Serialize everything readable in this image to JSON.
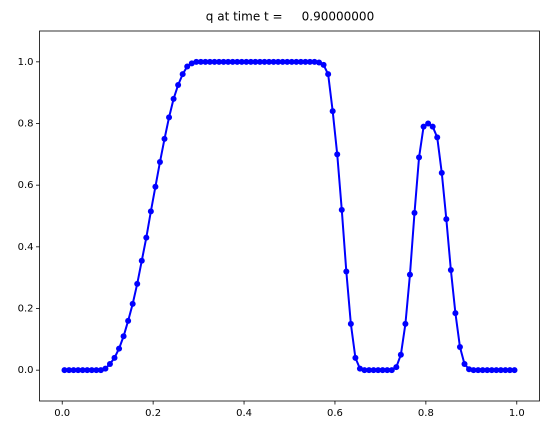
{
  "chart_data": {
    "type": "line",
    "title": "q at time t =     0.90000000",
    "x": [
      0.005,
      0.015,
      0.025,
      0.035,
      0.045,
      0.055,
      0.065,
      0.075,
      0.085,
      0.095,
      0.105,
      0.115,
      0.125,
      0.135,
      0.145,
      0.155,
      0.165,
      0.175,
      0.185,
      0.195,
      0.205,
      0.215,
      0.225,
      0.235,
      0.245,
      0.255,
      0.265,
      0.275,
      0.285,
      0.295,
      0.305,
      0.315,
      0.325,
      0.335,
      0.345,
      0.355,
      0.365,
      0.375,
      0.385,
      0.395,
      0.405,
      0.415,
      0.425,
      0.435,
      0.445,
      0.455,
      0.465,
      0.475,
      0.485,
      0.495,
      0.505,
      0.515,
      0.525,
      0.535,
      0.545,
      0.555,
      0.565,
      0.575,
      0.585,
      0.595,
      0.605,
      0.615,
      0.625,
      0.635,
      0.645,
      0.655,
      0.665,
      0.675,
      0.685,
      0.695,
      0.705,
      0.715,
      0.725,
      0.735,
      0.745,
      0.755,
      0.765,
      0.775,
      0.785,
      0.795,
      0.805,
      0.815,
      0.825,
      0.835,
      0.845,
      0.855,
      0.865,
      0.875,
      0.885,
      0.895,
      0.905,
      0.915,
      0.925,
      0.935,
      0.945,
      0.955,
      0.965,
      0.975,
      0.985,
      0.995
    ],
    "series": [
      {
        "color": "#0000ff",
        "values": [
          0,
          0,
          0,
          0,
          0,
          0,
          0,
          0,
          0,
          0.005,
          0.02,
          0.04,
          0.07,
          0.11,
          0.16,
          0.215,
          0.28,
          0.355,
          0.43,
          0.515,
          0.595,
          0.675,
          0.75,
          0.82,
          0.88,
          0.925,
          0.96,
          0.985,
          0.995,
          1,
          1,
          1,
          1,
          1,
          1,
          1,
          1,
          1,
          1,
          1,
          1,
          1,
          1,
          1,
          1,
          1,
          1,
          1,
          1,
          1,
          1,
          1,
          1,
          1,
          1,
          1,
          0.998,
          0.99,
          0.96,
          0.84,
          0.7,
          0.52,
          0.32,
          0.15,
          0.04,
          0.005,
          0,
          0,
          0,
          0,
          0,
          0,
          0,
          0.01,
          0.05,
          0.15,
          0.31,
          0.51,
          0.69,
          0.79,
          0.8,
          0.79,
          0.755,
          0.64,
          0.49,
          0.325,
          0.185,
          0.075,
          0.02,
          0.003,
          0,
          0,
          0,
          0,
          0,
          0,
          0,
          0,
          0,
          0
        ]
      }
    ],
    "xlim": [
      -0.05,
      1.05
    ],
    "ylim": [
      -0.1,
      1.1
    ],
    "xticks": [
      {
        "value": 0,
        "label": "0.0"
      },
      0.2,
      0.4,
      0.6,
      0.8,
      {
        "value": 1,
        "label": "1.0"
      }
    ],
    "yticks": [
      {
        "value": 0,
        "label": "0.0"
      },
      0.2,
      0.4,
      0.6,
      0.8,
      {
        "value": 1,
        "label": "1.0"
      }
    ]
  }
}
